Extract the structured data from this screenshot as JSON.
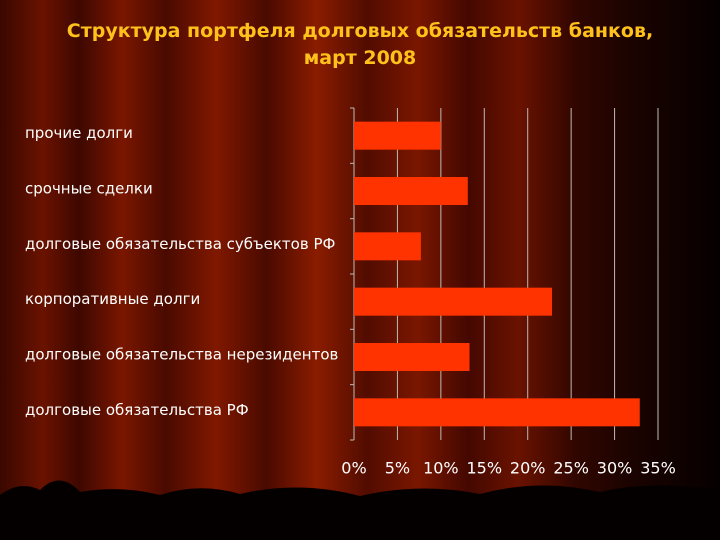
{
  "chart_data": {
    "type": "bar",
    "orientation": "horizontal",
    "title": "Структура портфеля долговых обязательств банков, март 2008",
    "categories": [
      "прочие долги",
      "срочные сделки",
      "долговые обязательства субъектов РФ",
      "корпоративные долги",
      "долговые обязательства нерезидентов",
      "долговые обязательства РФ"
    ],
    "values": [
      10.0,
      13.1,
      7.7,
      22.8,
      13.3,
      32.9
    ],
    "color": "#ff3300",
    "xlim": [
      0,
      35
    ],
    "xticks": [
      {
        "value": 0,
        "label": "0%"
      },
      {
        "value": 5,
        "label": "5%"
      },
      {
        "value": 10,
        "label": "10%"
      },
      {
        "value": 15,
        "label": "15%"
      },
      {
        "value": 20,
        "label": "20%"
      },
      {
        "value": 25,
        "label": "25%"
      },
      {
        "value": 30,
        "label": "30%"
      },
      {
        "value": 35,
        "label": "35%"
      }
    ],
    "grid": true
  }
}
